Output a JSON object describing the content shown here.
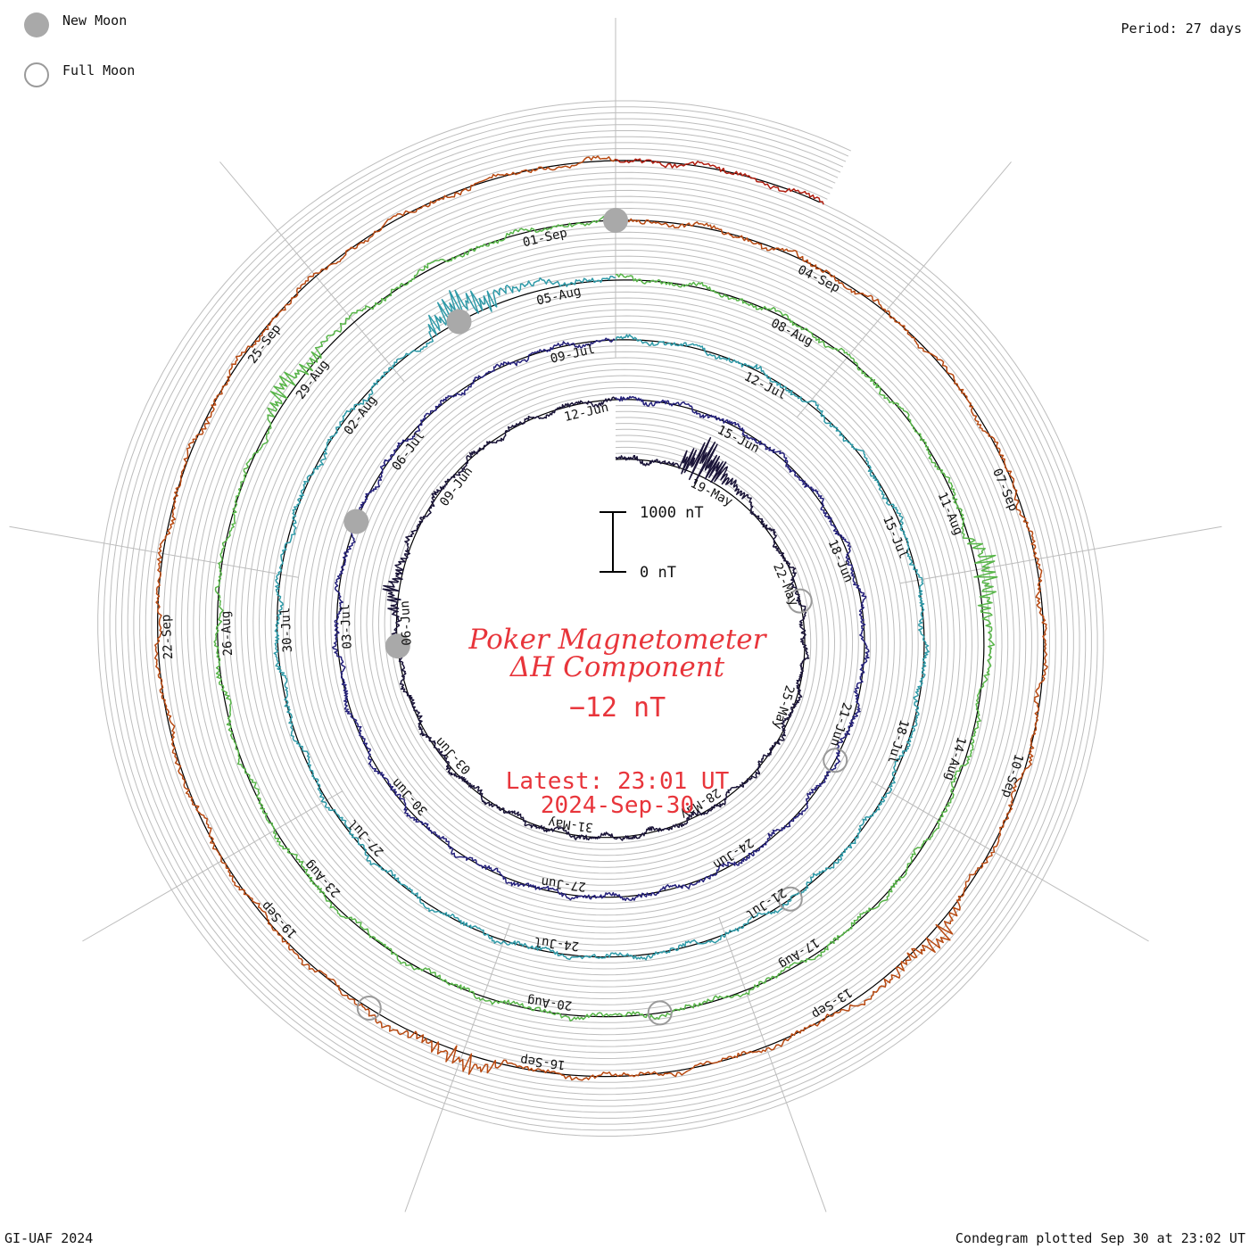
{
  "legend": {
    "new_moon": "New Moon",
    "full_moon": "Full Moon"
  },
  "header": {
    "period": "Period: 27 days"
  },
  "footer": {
    "credit": "GI-UAF 2024",
    "plotted": "Condegram plotted Sep 30 at 23:02 UT"
  },
  "scale_bar": {
    "top_label": "1000 nT",
    "bottom_label": "0 nT"
  },
  "title": {
    "line1": "Poker Magnetometer",
    "line2": "ΔH Component",
    "current_value": "−12 nT",
    "latest_time": "Latest: 23:01 UT",
    "latest_date": "2024-Sep-30"
  },
  "colors": {
    "title": "#e8353b",
    "moon_fill": "#a9a9a9",
    "grid": "#bdbdbd",
    "baseline": "#000000",
    "cycles": [
      "#1a1438",
      "#24207a",
      "#2746a8",
      "#2f9aa8",
      "#57b548",
      "#b3a318",
      "#b84a12",
      "#b01e10"
    ]
  },
  "chart_data": {
    "type": "line",
    "subtype": "condegram-spiral",
    "period_days": 27,
    "scale_nT": [
      0,
      1000
    ],
    "cycles": [
      {
        "start": "2024-05-17",
        "date_labels": [
          "19-May",
          "22-May",
          "25-May",
          "28-May",
          "31-May",
          "03-Jun",
          "06-Jun",
          "09-Jun",
          "12-Jun"
        ]
      },
      {
        "start": "2024-06-13",
        "date_labels": [
          "15-Jun",
          "18-Jun",
          "21-Jun",
          "24-Jun",
          "27-Jun",
          "30-Jun",
          "03-Jul",
          "06-Jul",
          "09-Jul"
        ]
      },
      {
        "start": "2024-07-10",
        "date_labels": [
          "12-Jul",
          "15-Jul",
          "18-Jul",
          "21-Jul",
          "24-Jul",
          "27-Jul",
          "30-Jul",
          "02-Aug",
          "05-Aug"
        ]
      },
      {
        "start": "2024-08-06",
        "date_labels": [
          "08-Aug",
          "11-Aug",
          "14-Aug",
          "17-Aug",
          "20-Aug",
          "23-Aug",
          "26-Aug",
          "29-Aug",
          "01-Sep"
        ]
      },
      {
        "start": "2024-09-02",
        "date_labels": [
          "04-Sep",
          "07-Sep",
          "10-Sep",
          "13-Sep",
          "16-Sep",
          "19-Sep",
          "22-Sep",
          "25-Sep"
        ]
      }
    ],
    "new_moons": [
      "2024-06-06",
      "2024-07-05",
      "2024-08-04",
      "2024-09-02"
    ],
    "full_moons": [
      "2024-05-23",
      "2024-06-22",
      "2024-07-21",
      "2024-08-19",
      "2024-09-18"
    ],
    "events": [
      {
        "date": "2024-05-19",
        "peak_nT": 900
      },
      {
        "date": "2024-06-07",
        "peak_nT": 300
      },
      {
        "date": "2024-08-04",
        "peak_nT": 700
      },
      {
        "date": "2024-08-12",
        "peak_nT": 450
      },
      {
        "date": "2024-08-29",
        "peak_nT": 400
      },
      {
        "date": "2024-09-12",
        "peak_nT": 380
      },
      {
        "date": "2024-09-17",
        "peak_nT": 350
      }
    ]
  }
}
